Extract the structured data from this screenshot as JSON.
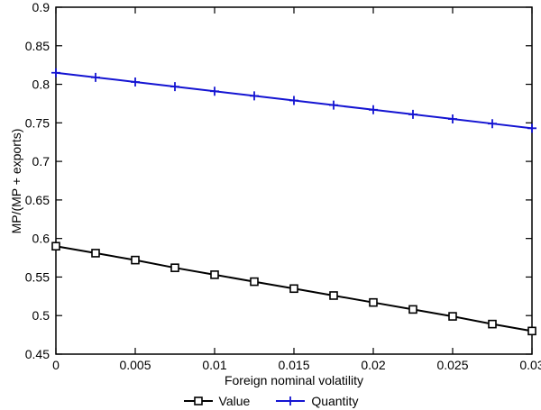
{
  "chart_data": {
    "type": "line",
    "title": "",
    "xlabel": "Foreign nominal volatility",
    "ylabel": "MP/(MP + exports)",
    "xlim": [
      0,
      0.03
    ],
    "ylim": [
      0.45,
      0.9
    ],
    "xticks": [
      0,
      0.005,
      0.01,
      0.015,
      0.02,
      0.025,
      0.03
    ],
    "xtick_labels": [
      "0",
      "0.005",
      "0.01",
      "0.015",
      "0.02",
      "0.025",
      "0.03"
    ],
    "yticks": [
      0.45,
      0.5,
      0.55,
      0.6,
      0.65,
      0.7,
      0.75,
      0.8,
      0.85,
      0.9
    ],
    "ytick_labels": [
      "0.45",
      "0.5",
      "0.55",
      "0.6",
      "0.65",
      "0.7",
      "0.75",
      "0.8",
      "0.85",
      "0.9"
    ],
    "grid": false,
    "legend_position": "bottom",
    "x": [
      0,
      0.0025,
      0.005,
      0.0075,
      0.01,
      0.0125,
      0.015,
      0.0175,
      0.02,
      0.0225,
      0.025,
      0.0275,
      0.03
    ],
    "series": [
      {
        "name": "Value",
        "color": "#000000",
        "marker": "square",
        "values": [
          0.59,
          0.581,
          0.572,
          0.562,
          0.553,
          0.544,
          0.535,
          0.526,
          0.517,
          0.508,
          0.499,
          0.489,
          0.48
        ]
      },
      {
        "name": "Quantity",
        "color": "#1414d2",
        "marker": "plus",
        "values": [
          0.815,
          0.809,
          0.803,
          0.797,
          0.791,
          0.785,
          0.779,
          0.773,
          0.767,
          0.761,
          0.755,
          0.749,
          0.743
        ]
      }
    ],
    "axis_color": "#000000",
    "background_color": "#ffffff"
  }
}
